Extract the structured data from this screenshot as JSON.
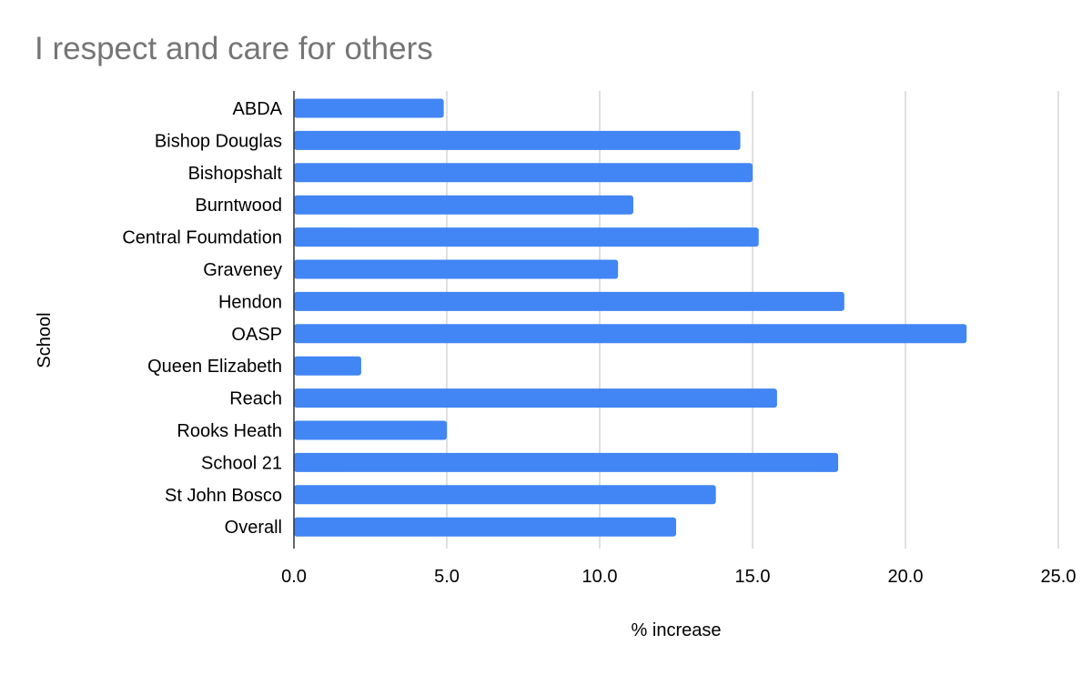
{
  "chart_data": {
    "type": "bar",
    "orientation": "horizontal",
    "title": "I respect and care for others",
    "xlabel": "% increase",
    "ylabel": "School",
    "categories": [
      "ABDA",
      "Bishop Douglas",
      "Bishopshalt",
      "Burntwood",
      "Central Foumdation",
      "Graveney",
      "Hendon",
      "OASP",
      "Queen Elizabeth",
      "Reach",
      "Rooks Heath",
      "School 21",
      "St John Bosco",
      "Overall"
    ],
    "values": [
      4.9,
      14.6,
      15.0,
      11.1,
      15.2,
      10.6,
      18.0,
      22.0,
      2.2,
      15.8,
      5.0,
      17.8,
      13.8,
      12.5
    ],
    "xlim": [
      0,
      25
    ],
    "xticks": [
      "0.0",
      "5.0",
      "10.0",
      "15.0",
      "20.0",
      "25.0"
    ],
    "grid": true,
    "legend": "none",
    "colors": {
      "bar": "#4285f4",
      "grid": "#cccccc",
      "axis": "#333333",
      "title": "#757575",
      "text": "#000000"
    }
  }
}
